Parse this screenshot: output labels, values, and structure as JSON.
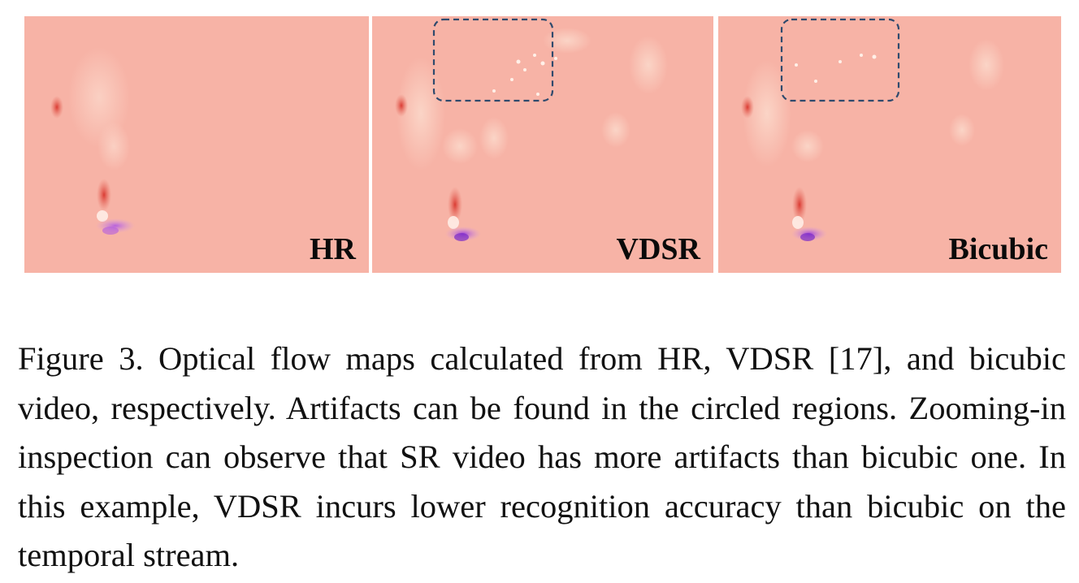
{
  "figure": {
    "panels": [
      {
        "label": "HR",
        "has_artifact_box": false
      },
      {
        "label": "VDSR",
        "has_artifact_box": true
      },
      {
        "label": "Bicubic",
        "has_artifact_box": true
      }
    ],
    "caption": "Figure 3. Optical flow maps calculated from HR, VDSR [17], and bicubic video, respectively. Artifacts can be found in the circled regions. Zooming-in inspection can observe that SR video has more artifacts than bicubic one. In this example, VDSR incurs lower recognition accuracy than bicubic on the temporal stream."
  },
  "colors": {
    "flow_background": "#f7b3a6",
    "flow_highlight": "#fbd6c8",
    "flow_red": "#d9342c",
    "flow_purple": "#b35ce0",
    "box_border": "#2f4a6d"
  }
}
